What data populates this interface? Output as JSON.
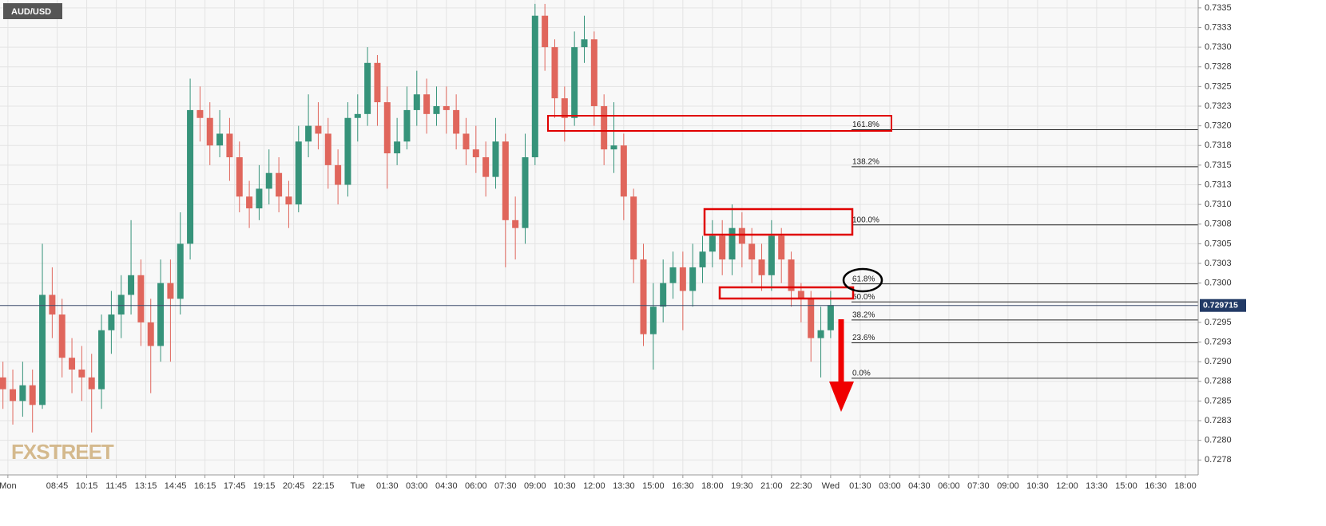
{
  "chart_data": {
    "type": "candlestick",
    "title": "AUD/USD",
    "watermark": "FXSTREET",
    "x": [
      6,
      6.5,
      7,
      7.5,
      8,
      8.5,
      9,
      9.5,
      10,
      10.5,
      11,
      11.5,
      12,
      12.5,
      13,
      13.5,
      14,
      14.5,
      15,
      15.5,
      16,
      16.5,
      17,
      17.5,
      18,
      18.5,
      19,
      19.5,
      20,
      20.5,
      21,
      21.5,
      22,
      22.5,
      23,
      23.5,
      24,
      24.5,
      25,
      25.5,
      26,
      26.5,
      27,
      27.5,
      28,
      28.5,
      29,
      29.5,
      30,
      30.5,
      31,
      31.5,
      32,
      32.5,
      33,
      33.5,
      34,
      34.5,
      35,
      35.5,
      36,
      36.5,
      37,
      37.5,
      38,
      38.5,
      39,
      39.5,
      40,
      40.5,
      41,
      41.5,
      42,
      42.5,
      43,
      43.5,
      44,
      44.5,
      45,
      45.5,
      46,
      46.5,
      47,
      47.5,
      48
    ],
    "open": [
      0.7288,
      0.72865,
      0.7285,
      0.7287,
      0.72845,
      0.72985,
      0.7296,
      0.72905,
      0.7289,
      0.7288,
      0.72865,
      0.7294,
      0.7296,
      0.72985,
      0.7301,
      0.7295,
      0.7292,
      0.73,
      0.7298,
      0.7305,
      0.7322,
      0.7321,
      0.73175,
      0.7319,
      0.7316,
      0.7311,
      0.73095,
      0.7312,
      0.7314,
      0.7311,
      0.731,
      0.7318,
      0.732,
      0.7319,
      0.7315,
      0.73125,
      0.7321,
      0.73215,
      0.7328,
      0.7323,
      0.73165,
      0.7318,
      0.7322,
      0.7324,
      0.73215,
      0.73225,
      0.7322,
      0.7319,
      0.7317,
      0.7316,
      0.73135,
      0.7318,
      0.7308,
      0.7307,
      0.7316,
      0.7334,
      0.733,
      0.73235,
      0.7321,
      0.733,
      0.7331,
      0.73225,
      0.7317,
      0.73175,
      0.7311,
      0.7303,
      0.72935,
      0.7297,
      0.73,
      0.7302,
      0.7299,
      0.7302,
      0.7304,
      0.7306,
      0.7303,
      0.7307,
      0.7305,
      0.7303,
      0.7301,
      0.7306,
      0.7303,
      0.7299,
      0.7298,
      0.7293,
      0.7294
    ],
    "high": [
      0.729,
      0.7289,
      0.729,
      0.7289,
      0.7305,
      0.7302,
      0.7298,
      0.7293,
      0.7292,
      0.7291,
      0.7296,
      0.7299,
      0.7301,
      0.7308,
      0.7303,
      0.7298,
      0.7303,
      0.7303,
      0.7309,
      0.7326,
      0.7325,
      0.7323,
      0.7322,
      0.7321,
      0.7318,
      0.7313,
      0.7315,
      0.7317,
      0.7316,
      0.7313,
      0.732,
      0.7324,
      0.7323,
      0.7321,
      0.7317,
      0.7323,
      0.7324,
      0.733,
      0.7329,
      0.7325,
      0.7321,
      0.7325,
      0.7327,
      0.7326,
      0.7325,
      0.7325,
      0.7324,
      0.7321,
      0.732,
      0.7318,
      0.7321,
      0.7319,
      0.7311,
      0.7319,
      0.73355,
      0.73355,
      0.7331,
      0.7325,
      0.7332,
      0.7334,
      0.7332,
      0.7324,
      0.7323,
      0.7319,
      0.7312,
      0.7305,
      0.73,
      0.7303,
      0.7304,
      0.7304,
      0.7305,
      0.7306,
      0.7308,
      0.7308,
      0.731,
      0.7309,
      0.7307,
      0.7305,
      0.7308,
      0.7307,
      0.7304,
      0.73,
      0.7299,
      0.7297,
      0.7299
    ],
    "low": [
      0.7284,
      0.7282,
      0.7283,
      0.7281,
      0.7284,
      0.7293,
      0.7288,
      0.7286,
      0.7285,
      0.7281,
      0.7284,
      0.7291,
      0.7293,
      0.7296,
      0.7292,
      0.7286,
      0.729,
      0.729,
      0.7296,
      0.7303,
      0.7318,
      0.7315,
      0.7316,
      0.7313,
      0.7309,
      0.7307,
      0.7308,
      0.731,
      0.7309,
      0.7307,
      0.7309,
      0.7316,
      0.7317,
      0.7312,
      0.731,
      0.7311,
      0.7318,
      0.732,
      0.732,
      0.7312,
      0.7315,
      0.7317,
      0.732,
      0.7319,
      0.732,
      0.7319,
      0.7317,
      0.7315,
      0.7314,
      0.7311,
      0.7312,
      0.7302,
      0.7303,
      0.7305,
      0.7315,
      0.7327,
      0.7321,
      0.7318,
      0.732,
      0.7328,
      0.732,
      0.7315,
      0.7314,
      0.7308,
      0.73,
      0.7292,
      0.7289,
      0.7295,
      0.7298,
      0.7294,
      0.7297,
      0.73,
      0.7302,
      0.7301,
      0.7301,
      0.7302,
      0.73,
      0.7299,
      0.7299,
      0.73,
      0.7297,
      0.7295,
      0.729,
      0.7288,
      0.7293
    ],
    "close": [
      0.72865,
      0.7285,
      0.7287,
      0.72845,
      0.72985,
      0.7296,
      0.72905,
      0.7289,
      0.7288,
      0.72865,
      0.7294,
      0.7296,
      0.72985,
      0.7301,
      0.7295,
      0.7292,
      0.73,
      0.7298,
      0.7305,
      0.7322,
      0.7321,
      0.73175,
      0.7319,
      0.7316,
      0.7311,
      0.73095,
      0.7312,
      0.7314,
      0.7311,
      0.731,
      0.7318,
      0.732,
      0.7319,
      0.7315,
      0.73125,
      0.7321,
      0.73215,
      0.7328,
      0.7323,
      0.73165,
      0.7318,
      0.7322,
      0.7324,
      0.73215,
      0.73225,
      0.7322,
      0.7319,
      0.7317,
      0.7316,
      0.73135,
      0.7318,
      0.7308,
      0.7307,
      0.7316,
      0.7334,
      0.733,
      0.73235,
      0.7321,
      0.733,
      0.7331,
      0.73225,
      0.7317,
      0.73175,
      0.7311,
      0.7303,
      0.72935,
      0.7297,
      0.73,
      0.7302,
      0.7299,
      0.7302,
      0.7304,
      0.7306,
      0.7303,
      0.7307,
      0.7305,
      0.7303,
      0.7301,
      0.7306,
      0.7303,
      0.7299,
      0.7298,
      0.7293,
      0.7294,
      0.72972
    ],
    "up_color": "#36937a",
    "down_color": "#e0665c",
    "xlim": [
      5.85,
      66.65
    ],
    "ylim": [
      0.72756,
      0.7336
    ],
    "grid": true,
    "last_price": 0.729715,
    "fib_levels": [
      {
        "label": "161.8%",
        "value": 0.73195
      },
      {
        "label": "138.2%",
        "value": 0.73148
      },
      {
        "label": "100.0%",
        "value": 0.73074
      },
      {
        "label": "61.8%",
        "value": 0.72999
      },
      {
        "label": "50.0%",
        "value": 0.72976
      },
      {
        "label": "38.2%",
        "value": 0.72953
      },
      {
        "label": "23.6%",
        "value": 0.72924
      },
      {
        "label": "0.0%",
        "value": 0.72879
      }
    ],
    "xticks": [
      {
        "value": 6.25,
        "label": "Mon"
      },
      {
        "value": 8.75,
        "label": "08:45"
      },
      {
        "value": 10.25,
        "label": "10:15"
      },
      {
        "value": 11.75,
        "label": "11:45"
      },
      {
        "value": 13.25,
        "label": "13:15"
      },
      {
        "value": 14.75,
        "label": "14:45"
      },
      {
        "value": 16.25,
        "label": "16:15"
      },
      {
        "value": 17.75,
        "label": "17:45"
      },
      {
        "value": 19.25,
        "label": "19:15"
      },
      {
        "value": 20.75,
        "label": "20:45"
      },
      {
        "value": 22.25,
        "label": "22:15"
      },
      {
        "value": 24,
        "label": "Tue"
      },
      {
        "value": 25.5,
        "label": "01:30"
      },
      {
        "value": 27,
        "label": "03:00"
      },
      {
        "value": 28.5,
        "label": "04:30"
      },
      {
        "value": 30,
        "label": "06:00"
      },
      {
        "value": 31.5,
        "label": "07:30"
      },
      {
        "value": 33,
        "label": "09:00"
      },
      {
        "value": 34.5,
        "label": "10:30"
      },
      {
        "value": 36,
        "label": "12:00"
      },
      {
        "value": 37.5,
        "label": "13:30"
      },
      {
        "value": 39,
        "label": "15:00"
      },
      {
        "value": 40.5,
        "label": "16:30"
      },
      {
        "value": 42,
        "label": "18:00"
      },
      {
        "value": 43.5,
        "label": "19:30"
      },
      {
        "value": 45,
        "label": "21:00"
      },
      {
        "value": 46.5,
        "label": "22:30"
      },
      {
        "value": 48,
        "label": "Wed"
      },
      {
        "value": 49.5,
        "label": "01:30"
      },
      {
        "value": 51,
        "label": "03:00"
      },
      {
        "value": 52.5,
        "label": "04:30"
      },
      {
        "value": 54,
        "label": "06:00"
      },
      {
        "value": 55.5,
        "label": "07:30"
      },
      {
        "value": 57,
        "label": "09:00"
      },
      {
        "value": 58.5,
        "label": "10:30"
      },
      {
        "value": 60,
        "label": "12:00"
      },
      {
        "value": 61.5,
        "label": "13:30"
      },
      {
        "value": 63,
        "label": "15:00"
      },
      {
        "value": 64.5,
        "label": "16:30"
      },
      {
        "value": 66,
        "label": "18:00"
      }
    ],
    "yticks": [
      0.7335,
      {
        "value": 0.73325,
        "label": "0.7333"
      },
      {
        "value": 0.733,
        "label": "0.7330"
      },
      {
        "value": 0.73275,
        "label": "0.7328"
      },
      0.7325,
      {
        "value": 0.73225,
        "label": "0.7323"
      },
      {
        "value": 0.732,
        "label": "0.7320"
      },
      {
        "value": 0.73175,
        "label": "0.7318"
      },
      0.7315,
      {
        "value": 0.73125,
        "label": "0.7313"
      },
      {
        "value": 0.731,
        "label": "0.7310"
      },
      {
        "value": 0.73075,
        "label": "0.7308"
      },
      0.7305,
      {
        "value": 0.73025,
        "label": "0.7303"
      },
      {
        "value": 0.73,
        "label": "0.7300"
      },
      0.7295,
      {
        "value": 0.72925,
        "label": "0.7293"
      },
      {
        "value": 0.729,
        "label": "0.7290"
      },
      {
        "value": 0.72875,
        "label": "0.7288"
      },
      0.7285,
      {
        "value": 0.72825,
        "label": "0.7283"
      },
      {
        "value": 0.728,
        "label": "0.7280"
      },
      {
        "value": 0.72775,
        "label": "0.7278"
      }
    ]
  }
}
